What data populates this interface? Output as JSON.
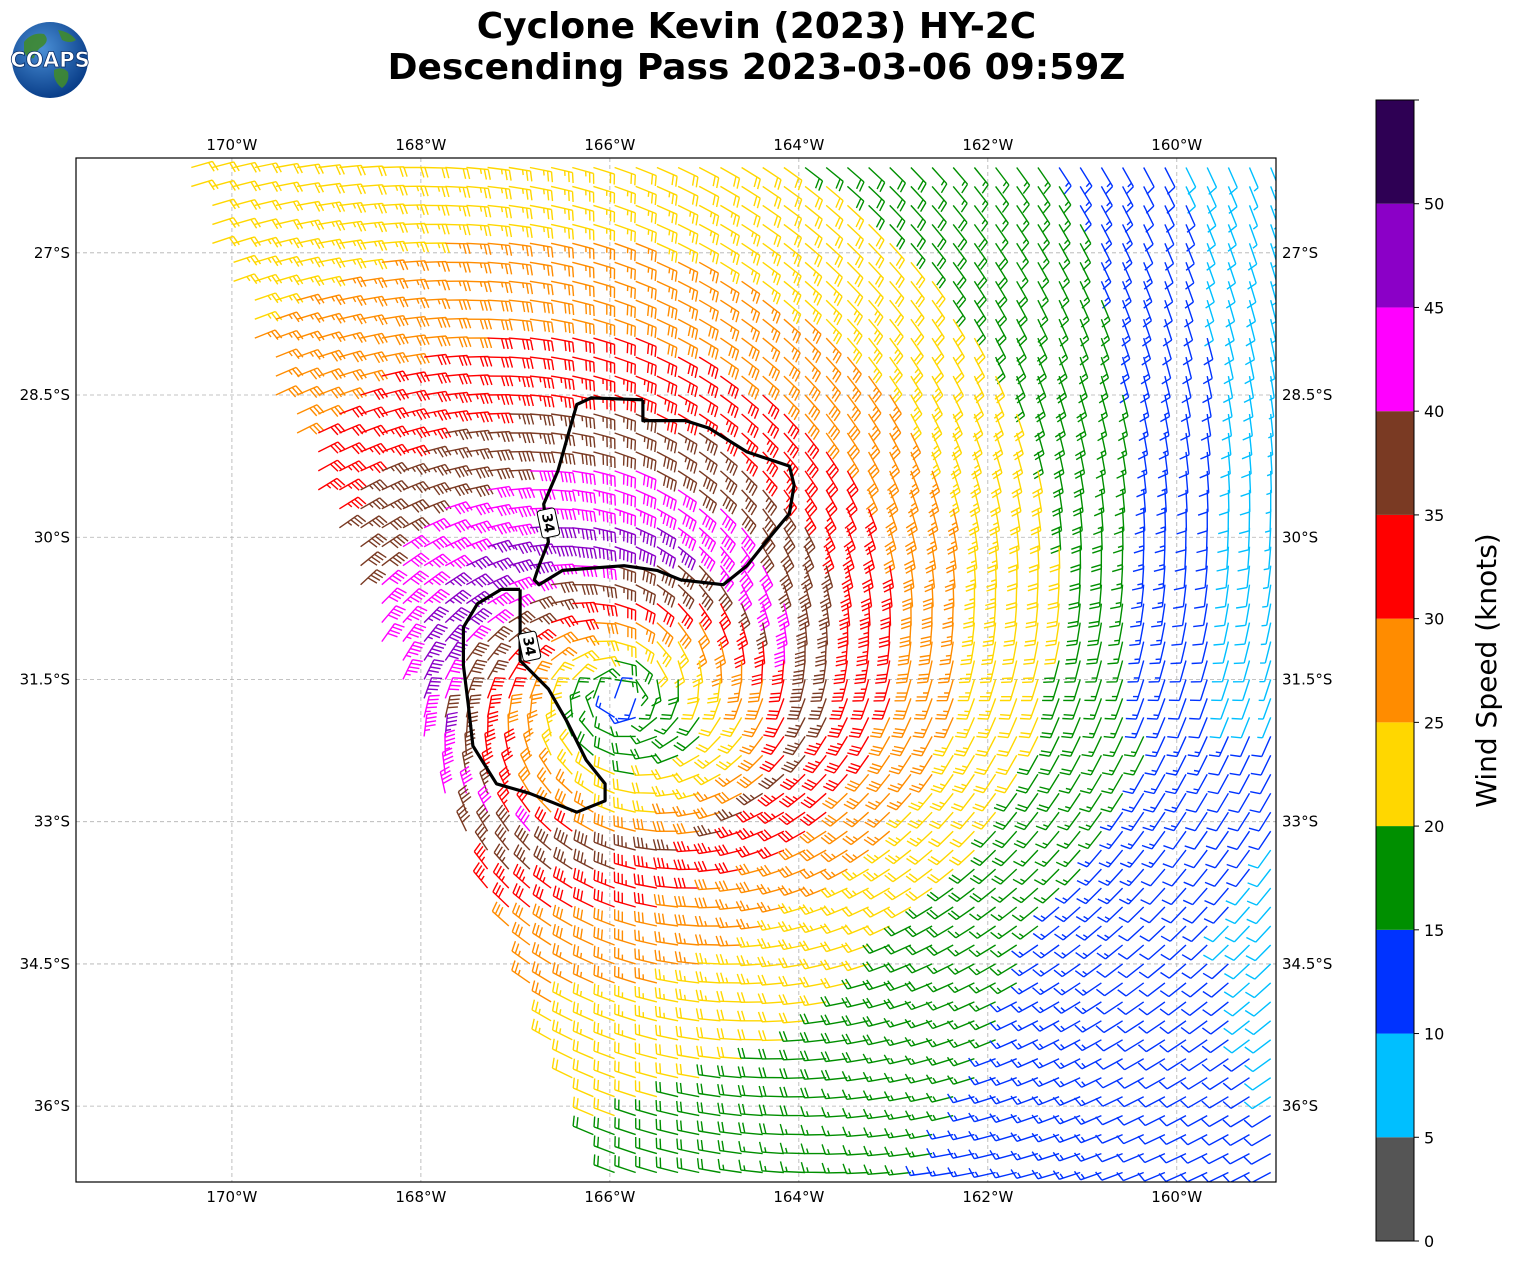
{
  "title": {
    "line1": "Cyclone Kevin (2023) HY-2C",
    "line2": "Descending Pass 2023-03-06 09:59Z"
  },
  "logo": {
    "text": "COAPS",
    "icon": "globe-logo"
  },
  "map": {
    "lon_range": [
      -171.65,
      -158.95
    ],
    "lat_range": [
      -36.8,
      -26.0
    ],
    "lon_ticks": [
      {
        "value": -170,
        "label": "170°W"
      },
      {
        "value": -168,
        "label": "168°W"
      },
      {
        "value": -166,
        "label": "166°W"
      },
      {
        "value": -164,
        "label": "164°W"
      },
      {
        "value": -162,
        "label": "162°W"
      },
      {
        "value": -160,
        "label": "160°W"
      }
    ],
    "lat_ticks": [
      {
        "value": -27,
        "label": "27°S"
      },
      {
        "value": -28.5,
        "label": "28.5°S"
      },
      {
        "value": -30,
        "label": "30°S"
      },
      {
        "value": -31.5,
        "label": "31.5°S"
      },
      {
        "value": -33,
        "label": "33°S"
      },
      {
        "value": -34.5,
        "label": "34.5°S"
      },
      {
        "value": -36,
        "label": "36°S"
      }
    ],
    "gridlines": true,
    "cyclone_center": {
      "lon": -165.9,
      "lat": -31.7
    },
    "swath_west_edge": [
      [
        -170.6,
        -26.0
      ],
      [
        -166.0,
        -36.8
      ]
    ],
    "contour_level_label": "34",
    "contour_labels": [
      {
        "text": "34",
        "lon": -166.65,
        "lat": -29.85
      },
      {
        "text": "34",
        "lon": -166.85,
        "lat": -31.15
      }
    ],
    "contours": [
      [
        [
          -165.65,
          -28.55
        ],
        [
          -166.2,
          -28.53
        ],
        [
          -166.35,
          -28.6
        ],
        [
          -166.45,
          -28.95
        ],
        [
          -166.55,
          -29.3
        ],
        [
          -166.7,
          -29.65
        ],
        [
          -166.65,
          -30.05
        ],
        [
          -166.75,
          -30.3
        ],
        [
          -166.8,
          -30.45
        ],
        [
          -166.75,
          -30.5
        ],
        [
          -166.5,
          -30.35
        ],
        [
          -165.85,
          -30.3
        ],
        [
          -165.5,
          -30.35
        ],
        [
          -165.25,
          -30.45
        ],
        [
          -164.8,
          -30.5
        ],
        [
          -164.55,
          -30.3
        ],
        [
          -164.35,
          -30.05
        ],
        [
          -164.1,
          -29.75
        ],
        [
          -164.05,
          -29.45
        ],
        [
          -164.1,
          -29.25
        ],
        [
          -164.55,
          -29.1
        ],
        [
          -164.95,
          -28.85
        ],
        [
          -165.2,
          -28.77
        ],
        [
          -165.65,
          -28.77
        ],
        [
          -165.65,
          -28.55
        ]
      ],
      [
        [
          -166.95,
          -30.55
        ],
        [
          -167.15,
          -30.55
        ],
        [
          -167.4,
          -30.7
        ],
        [
          -167.55,
          -30.95
        ],
        [
          -167.55,
          -31.35
        ],
        [
          -167.5,
          -31.75
        ],
        [
          -167.45,
          -32.2
        ],
        [
          -167.2,
          -32.6
        ],
        [
          -166.85,
          -32.7
        ],
        [
          -166.6,
          -32.8
        ],
        [
          -166.35,
          -32.9
        ],
        [
          -166.05,
          -32.78
        ],
        [
          -166.05,
          -32.6
        ],
        [
          -166.25,
          -32.35
        ],
        [
          -166.45,
          -31.95
        ],
        [
          -166.65,
          -31.6
        ],
        [
          -166.95,
          -31.3
        ],
        [
          -166.95,
          -30.55
        ]
      ]
    ]
  },
  "colorbar": {
    "title": "Wind Speed (knots)",
    "min": 0,
    "max": 55,
    "boundaries": [
      0,
      5,
      10,
      15,
      20,
      25,
      30,
      35,
      40,
      45,
      50,
      55
    ],
    "tick_labels": [
      "0",
      "5",
      "10",
      "15",
      "20",
      "25",
      "30",
      "35",
      "40",
      "45",
      "50"
    ],
    "colors": [
      "#555555",
      "#00bfff",
      "#0033ff",
      "#008f00",
      "#ffd700",
      "#ff8c00",
      "#ff0000",
      "#7a3a23",
      "#ff00ff",
      "#8b00c7",
      "#2e0054"
    ]
  }
}
